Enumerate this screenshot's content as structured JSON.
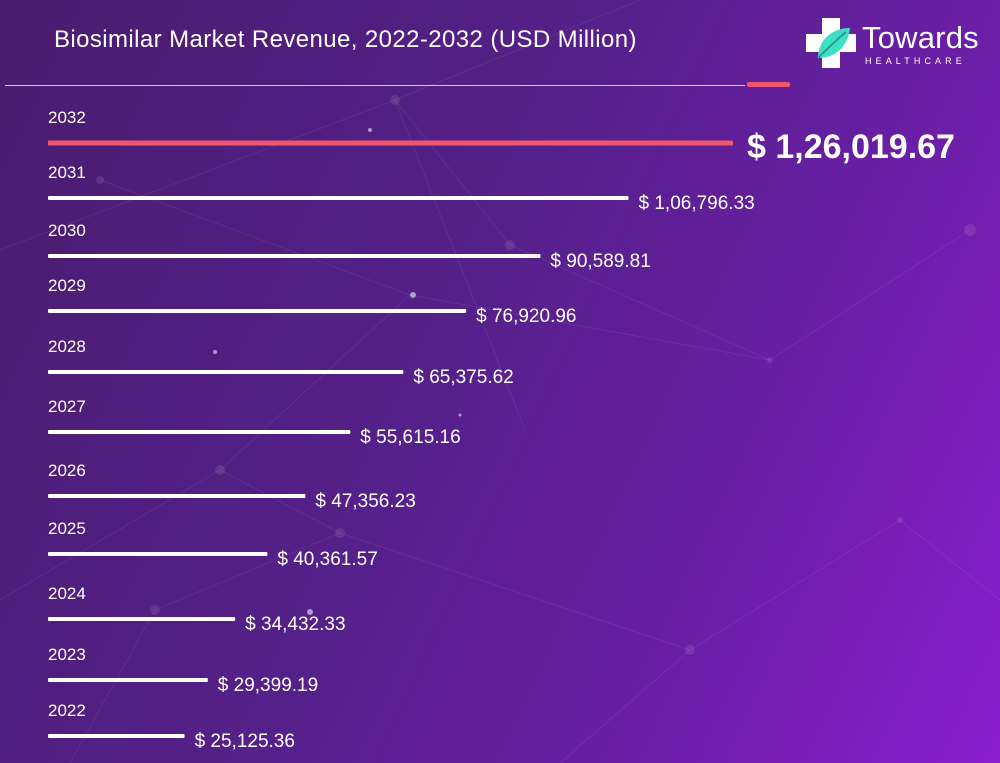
{
  "header": {
    "title": "Biosimilar Market Revenue, 2022-2032 (USD Million)"
  },
  "logo": {
    "icon": "medical-cross-leaf-icon",
    "name": "Towards",
    "tagline": "HEALTHCARE"
  },
  "colors": {
    "background_start": "#4a1c6e",
    "background_end": "#8a1fd0",
    "bar": "#ffffff",
    "highlight_bar": "#f0566e",
    "text": "#ffffff",
    "logo_teal": "#3ee0c5"
  },
  "chart_data": {
    "type": "bar",
    "orientation": "horizontal",
    "title": "Biosimilar Market Revenue, 2022-2032 (USD Million)",
    "categories": [
      "2032",
      "2031",
      "2030",
      "2029",
      "2028",
      "2027",
      "2026",
      "2025",
      "2024",
      "2023",
      "2022"
    ],
    "values": [
      126019.67,
      106796.33,
      90589.81,
      76920.96,
      65375.62,
      55615.16,
      47356.23,
      40361.57,
      34432.33,
      29399.19,
      25125.36
    ],
    "value_labels": [
      "$ 1,26,019.67",
      "$ 1,06,796.33",
      "$ 90,589.81",
      "$ 76,920.96",
      "$ 65,375.62",
      "$ 55,615.16",
      "$ 47,356.23",
      "$ 40,361.57",
      "$ 34,432.33",
      "$ 29,399.19",
      "$ 25,125.36"
    ],
    "highlight_category": "2032",
    "xlabel": "",
    "ylabel": "",
    "grid": false,
    "legend": "none"
  }
}
